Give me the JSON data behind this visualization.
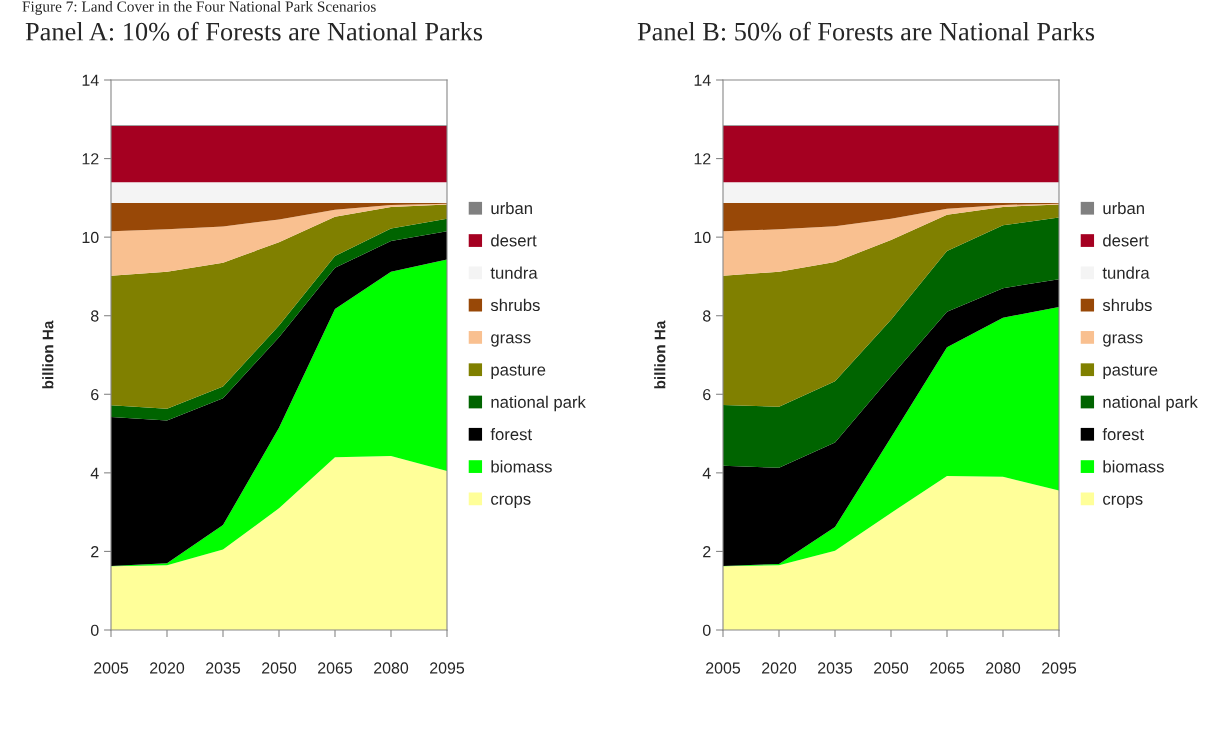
{
  "chart_data": [
    {
      "type": "area",
      "stacked": true,
      "title": "Panel A: 10% of Forests are National Parks",
      "ylabel": "billion Ha",
      "annotations": [
        "Figure 7: Land Cover in the Four National Park Scenarios"
      ],
      "x": [
        2005,
        2020,
        2035,
        2050,
        2065,
        2080,
        2095
      ],
      "xlim": [
        2005,
        2095
      ],
      "xticks": [
        2005,
        2020,
        2035,
        2050,
        2065,
        2080,
        2095
      ],
      "ylim": [
        0,
        14
      ],
      "yticks": [
        0,
        2,
        4,
        6,
        8,
        10,
        12,
        14
      ],
      "grid": false,
      "legend": "right",
      "series": [
        {
          "name": "crops",
          "color": "#ffff99",
          "values": [
            1.62,
            1.65,
            2.05,
            3.1,
            4.4,
            4.43,
            4.05
          ]
        },
        {
          "name": "biomass",
          "color": "#00ff00",
          "values": [
            0.01,
            0.05,
            0.62,
            2.05,
            3.77,
            4.69,
            5.38
          ]
        },
        {
          "name": "forest",
          "color": "#000000",
          "values": [
            3.79,
            3.63,
            3.23,
            2.3,
            1.05,
            0.78,
            0.72
          ]
        },
        {
          "name": "national park",
          "color": "#006400",
          "values": [
            0.3,
            0.3,
            0.3,
            0.3,
            0.3,
            0.32,
            0.32
          ]
        },
        {
          "name": "pasture",
          "color": "#808000",
          "values": [
            3.3,
            3.49,
            3.15,
            2.12,
            1.0,
            0.55,
            0.36
          ]
        },
        {
          "name": "grass",
          "color": "#f9c090",
          "values": [
            1.13,
            1.08,
            0.92,
            0.58,
            0.18,
            0.05,
            0.02
          ]
        },
        {
          "name": "shrubs",
          "color": "#984807",
          "values": [
            0.72,
            0.67,
            0.6,
            0.42,
            0.17,
            0.05,
            0.02
          ]
        },
        {
          "name": "tundra",
          "color": "#f4f4f4",
          "values": [
            0.53,
            0.53,
            0.53,
            0.53,
            0.53,
            0.53,
            0.53
          ]
        },
        {
          "name": "desert",
          "color": "#a50021",
          "values": [
            1.43,
            1.43,
            1.43,
            1.43,
            1.43,
            1.43,
            1.43
          ]
        },
        {
          "name": "urban",
          "color": "#808080",
          "values": [
            0.02,
            0.02,
            0.02,
            0.02,
            0.02,
            0.02,
            0.02
          ]
        }
      ]
    },
    {
      "type": "area",
      "stacked": true,
      "title": "Panel B: 50% of Forests are National Parks",
      "ylabel": "billion Ha",
      "x": [
        2005,
        2020,
        2035,
        2050,
        2065,
        2080,
        2095
      ],
      "xlim": [
        2005,
        2095
      ],
      "xticks": [
        2005,
        2020,
        2035,
        2050,
        2065,
        2080,
        2095
      ],
      "ylim": [
        0,
        14
      ],
      "yticks": [
        0,
        2,
        4,
        6,
        8,
        10,
        12,
        14
      ],
      "grid": false,
      "legend": "right",
      "series": [
        {
          "name": "crops",
          "color": "#ffff99",
          "values": [
            1.62,
            1.65,
            2.02,
            2.98,
            3.92,
            3.9,
            3.55
          ]
        },
        {
          "name": "biomass",
          "color": "#00ff00",
          "values": [
            0.01,
            0.03,
            0.6,
            1.92,
            3.28,
            4.05,
            4.67
          ]
        },
        {
          "name": "forest",
          "color": "#000000",
          "values": [
            2.55,
            2.45,
            2.15,
            1.55,
            0.9,
            0.75,
            0.71
          ]
        },
        {
          "name": "national park",
          "color": "#006400",
          "values": [
            1.55,
            1.55,
            1.56,
            1.45,
            1.55,
            1.6,
            1.57
          ]
        },
        {
          "name": "pasture",
          "color": "#808000",
          "values": [
            3.29,
            3.44,
            3.04,
            2.03,
            0.92,
            0.47,
            0.33
          ]
        },
        {
          "name": "grass",
          "color": "#f9c090",
          "values": [
            1.13,
            1.08,
            0.91,
            0.54,
            0.15,
            0.05,
            0.02
          ]
        },
        {
          "name": "shrubs",
          "color": "#984807",
          "values": [
            0.72,
            0.67,
            0.59,
            0.4,
            0.15,
            0.05,
            0.02
          ]
        },
        {
          "name": "tundra",
          "color": "#f4f4f4",
          "values": [
            0.53,
            0.53,
            0.53,
            0.53,
            0.53,
            0.53,
            0.53
          ]
        },
        {
          "name": "desert",
          "color": "#a50021",
          "values": [
            1.43,
            1.43,
            1.43,
            1.43,
            1.43,
            1.43,
            1.43
          ]
        },
        {
          "name": "urban",
          "color": "#808080",
          "values": [
            0.02,
            0.02,
            0.02,
            0.02,
            0.02,
            0.02,
            0.02
          ]
        }
      ]
    }
  ]
}
